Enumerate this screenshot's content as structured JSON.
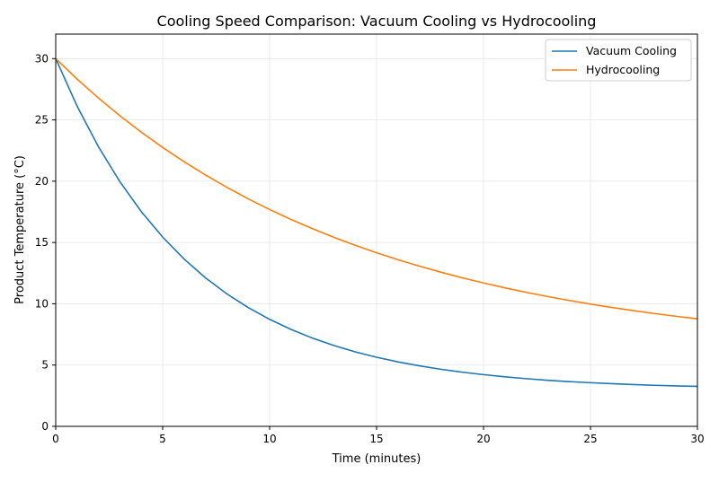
{
  "chart_data": {
    "type": "line",
    "title": "Cooling Speed Comparison: Vacuum Cooling vs Hydrocooling",
    "xlabel": "Time (minutes)",
    "ylabel": "Product Temperature (°C)",
    "xlim": [
      0,
      30
    ],
    "ylim": [
      0,
      32
    ],
    "xticks": [
      0,
      5,
      10,
      15,
      20,
      25,
      30
    ],
    "yticks": [
      0,
      5,
      10,
      15,
      20,
      25,
      30
    ],
    "grid": true,
    "legend_position": "top-right",
    "x": [
      0,
      1,
      2,
      3,
      4,
      5,
      6,
      7,
      8,
      9,
      10,
      11,
      12,
      13,
      14,
      15,
      16,
      17,
      18,
      19,
      20,
      21,
      22,
      23,
      24,
      25,
      26,
      27,
      28,
      29,
      30
    ],
    "series": [
      {
        "name": "Vacuum Cooling",
        "color": "#1f77b4",
        "values": [
          30,
          26.12,
          22.8,
          19.96,
          17.52,
          15.44,
          13.65,
          12.12,
          10.81,
          9.69,
          8.73,
          7.91,
          7.2,
          6.6,
          6.08,
          5.64,
          5.26,
          4.94,
          4.66,
          4.42,
          4.22,
          4.04,
          3.89,
          3.76,
          3.65,
          3.56,
          3.48,
          3.41,
          3.35,
          3.3,
          3.26
        ]
      },
      {
        "name": "Hydrocooling",
        "color": "#ff7f0e",
        "values": [
          30,
          28.33,
          26.78,
          25.34,
          24.0,
          22.75,
          21.59,
          20.51,
          19.5,
          18.56,
          17.69,
          16.88,
          16.13,
          15.42,
          14.77,
          14.16,
          13.59,
          13.07,
          12.58,
          12.12,
          11.7,
          11.3,
          10.93,
          10.59,
          10.27,
          9.97,
          9.7,
          9.44,
          9.2,
          8.98,
          8.77
        ]
      }
    ]
  }
}
